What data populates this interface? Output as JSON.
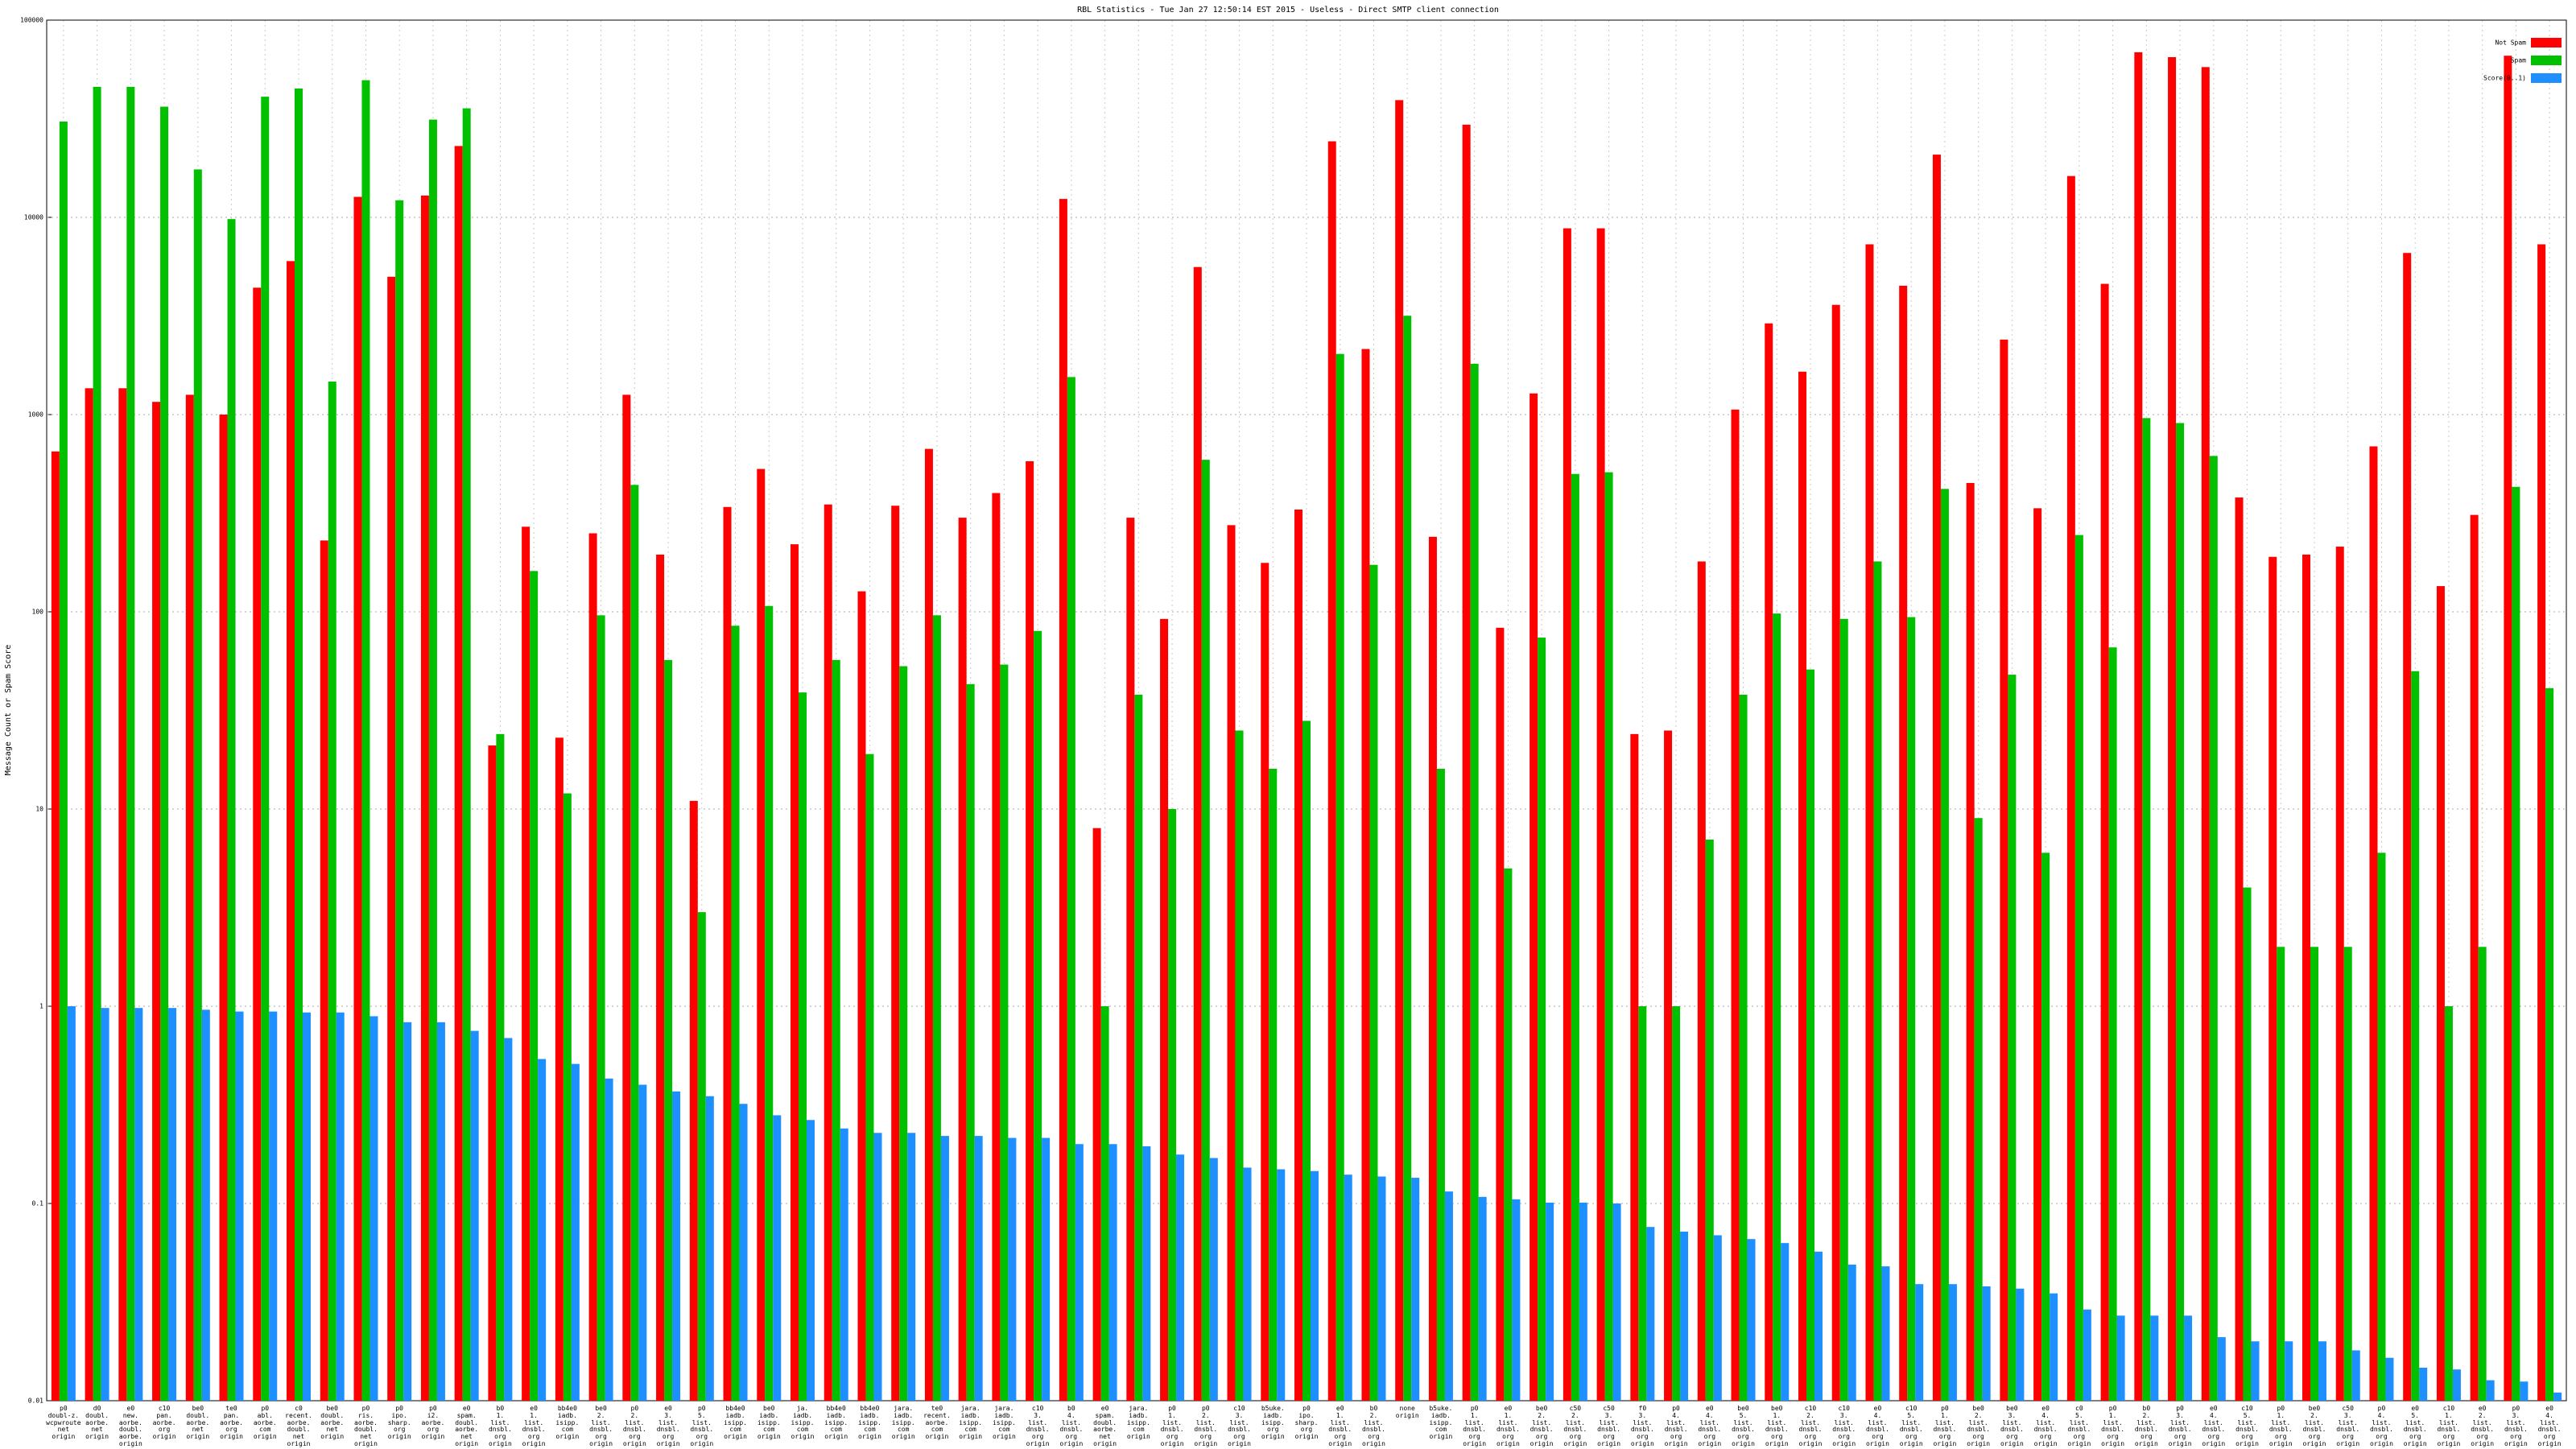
{
  "chart_data": {
    "type": "bar",
    "title": "RBL Statistics - Tue Jan 27 12:50:14 EST 2015 - Useless - Direct SMTP client connection",
    "y_label": "Message Count or Spam Score",
    "log_scale": true,
    "grid": true,
    "legend": "upper right",
    "ylim": [
      0.01,
      100000
    ],
    "yticks": [
      0.01,
      0.1,
      1,
      10,
      100,
      1000,
      10000,
      100000
    ],
    "categories": [
      "p0\ndoubl-z.\nwcpwroute\nnet\norigin",
      "d0\ndoubl.\naorbe.\nnet\norigin",
      "e0\nnew.\naorbe.\ndoubl.\naorbe.\norigin",
      "c10\npan.\naorbe.\norg\norigin",
      "be0\ndoubl.\naorbe.\nnet\norigin",
      "te0\npan.\naorbe.\norg\norigin",
      "p0\nabl.\naorbe.\ncom\norigin",
      "c0\nrecent.\naorbe.\ndoubl.\nnet\norigin",
      "be0\ndoubl.\naorbe.\nnet\norigin",
      "p0\nris.\naorbe.\ndoubl.\nnet\norigin",
      "p0\nipo.\nsharp.\norg\norigin",
      "p0\ni2.\naorbe.\norg\norigin",
      "e0\nspam.\ndoubl.\naorbe.\nnet\norigin",
      "b0\n1.\nlist.\ndnsbl.\norg\norigin",
      "e0\n1.\nlist.\ndnsbl.\norg\norigin",
      "bb4e0\niadb.\nisipp.\ncom\norigin",
      "be0\n2.\nlist.\ndnsbl.\norg\norigin",
      "p0\n2.\nlist.\ndnsbl.\norg\norigin",
      "e0\n3.\nlist.\ndnsbl.\norg\norigin",
      "p0\n5.\nlist.\ndnsbl.\norg\norigin",
      "bb4e0\niadb.\nisipp.\ncom\norigin",
      "be0\niadb.\nisipp.\ncom\norigin",
      "ja.\niadb.\nisipp.\ncom\norigin",
      "bb4e0\niadb.\nisipp.\ncom\norigin",
      "bb4e0\niadb.\nisipp.\ncom\norigin",
      "jara.\niadb.\nisipp.\ncom\norigin",
      "te0\nrecent.\naorbe.\ncom\norigin",
      "jara.\niadb.\nisipp.\ncom\norigin",
      "jara.\niadb.\nisipp.\ncom\norigin",
      "c10\n3.\nlist.\ndnsbl.\norg\norigin",
      "b0\n4.\nlist.\ndnsbl.\norg\norigin",
      "e0\nspam.\ndoubl.\naorbe.\nnet\norigin",
      "jara.\niadb.\nisipp.\ncom\norigin",
      "p0\n1.\nlist.\ndnsbl.\norg\norigin",
      "p0\n2.\nlist.\ndnsbl.\norg\norigin",
      "c10\n3.\nlist.\ndnsbl.\norg\norigin",
      "b5uke.\niadb.\nisipp.\norg\norigin",
      "p0\nipo.\nsharp.\norg\norigin",
      "e0\n1.\nlist.\ndnsbl.\norg\norigin",
      "b0\n2.\nlist.\ndnsbl.\norg\norigin",
      "none\norigin",
      "b5uke.\niadb.\nisipp.\ncom\norigin",
      "p0\n1.\nlist.\ndnsbl.\norg\norigin",
      "e0\n1.\nlist.\ndnsbl.\norg\norigin",
      "be0\n2.\nlist.\ndnsbl.\norg\norigin",
      "c50\n2.\nlist.\ndnsbl.\norg\norigin",
      "c50\n3.\nlist.\ndnsbl.\norg\norigin",
      "f0\n3.\nlist.\ndnsbl.\norg\norigin",
      "p0\n4.\nlist.\ndnsbl.\norg\norigin",
      "e0\n4.\nlist.\ndnsbl.\norg\norigin",
      "be0\n5.\nlist.\ndnsbl.\norg\norigin",
      "be0\n1.\nlist.\ndnsbl.\norg\norigin",
      "c10\n2.\nlist.\ndnsbl.\norg\norigin",
      "c10\n3.\nlist.\ndnsbl.\norg\norigin",
      "e0\n4.\nlist.\ndnsbl.\norg\norigin",
      "c10\n5.\nlist.\ndnsbl.\norg\norigin",
      "p0\n1.\nlist.\ndnsbl.\norg\norigin",
      "be0\n2.\nlist.\ndnsbl.\norg\norigin",
      "be0\n3.\nlist.\ndnsbl.\norg\norigin",
      "e0\n4.\nlist.\ndnsbl.\norg\norigin",
      "c0\n5.\nlist.\ndnsbl.\norg\norigin",
      "p0\n1.\nlist.\ndnsbl.\norg\norigin",
      "b0\n2.\nlist.\ndnsbl.\norg\norigin",
      "p0\n3.\nlist.\ndnsbl.\norg\norigin",
      "e0\n4.\nlist.\ndnsbl.\norg\norigin",
      "c10\n5.\nlist.\ndnsbl.\norg\norigin",
      "p0\n1.\nlist.\ndnsbl.\norg\norigin",
      "be0\n2.\nlist.\ndnsbl.\norg\norigin",
      "c50\n3.\nlist.\ndnsbl.\norg\norigin",
      "p0\n4.\nlist.\ndnsbl.\norg\norigin",
      "e0\n5.\nlist.\ndnsbl.\norg\norigin",
      "c10\n1.\nlist.\ndnsbl.\norg\norigin",
      "e0\n2.\nlist.\ndnsbl.\norg\norigin",
      "p0\n3.\nlist.\ndnsbl.\norg\norigin",
      "e0\n4.\nlist.\ndnsbl.\norg\norigin"
    ],
    "series": [
      {
        "name": "Not Spam",
        "color": "#ff0000",
        "values": [
          650,
          1360,
          1360,
          1160,
          1260,
          1000,
          4400,
          6000,
          230,
          12700,
          5000,
          12900,
          23000,
          21,
          270,
          23,
          250,
          1260,
          195,
          11,
          340,
          530,
          220,
          350,
          127,
          345,
          670,
          300,
          400,
          580,
          12400,
          8,
          300,
          92,
          5600,
          275,
          177,
          330,
          24300,
          2150,
          39300,
          240,
          29500,
          83,
          1280,
          8800,
          8800,
          24,
          25,
          180,
          1060,
          2900,
          1650,
          3600,
          7300,
          4500,
          20800,
          450,
          2400,
          335,
          16200,
          4600,
          68700,
          64900,
          57800,
          380,
          190,
          195,
          214,
          690,
          6600,
          135,
          310,
          66000,
          7300
        ]
      },
      {
        "name": "Spam",
        "color": "#00c000",
        "values": [
          30600,
          45900,
          45900,
          36400,
          17500,
          9800,
          40900,
          45000,
          1470,
          49600,
          12200,
          31300,
          35700,
          24,
          161,
          12,
          96,
          440,
          57,
          3,
          85,
          107,
          39,
          57,
          19,
          53,
          96,
          43,
          54,
          80,
          1550,
          1,
          38,
          10,
          590,
          25,
          16,
          28,
          2030,
          173,
          3170,
          16,
          1810,
          5,
          74,
          500,
          510,
          1,
          1,
          7,
          38,
          98,
          51,
          92,
          180,
          94,
          420,
          9,
          48,
          6,
          245,
          66,
          960,
          906,
          617,
          4,
          2,
          2,
          2,
          6,
          50,
          1,
          2,
          430,
          41
        ]
      },
      {
        "name": "Score(0..1)",
        "color": "#1e8fff",
        "values": [
          1.0,
          0.98,
          0.98,
          0.98,
          0.96,
          0.94,
          0.94,
          0.93,
          0.93,
          0.89,
          0.83,
          0.83,
          0.75,
          0.69,
          0.54,
          0.51,
          0.43,
          0.4,
          0.37,
          0.35,
          0.32,
          0.28,
          0.265,
          0.24,
          0.228,
          0.228,
          0.22,
          0.22,
          0.215,
          0.215,
          0.2,
          0.2,
          0.195,
          0.177,
          0.17,
          0.152,
          0.149,
          0.146,
          0.14,
          0.137,
          0.135,
          0.115,
          0.108,
          0.105,
          0.101,
          0.101,
          0.1,
          0.076,
          0.072,
          0.069,
          0.066,
          0.063,
          0.057,
          0.049,
          0.048,
          0.039,
          0.039,
          0.038,
          0.037,
          0.035,
          0.029,
          0.027,
          0.027,
          0.027,
          0.021,
          0.02,
          0.02,
          0.02,
          0.018,
          0.0165,
          0.0147,
          0.0144,
          0.0127,
          0.0125,
          0.011
        ]
      }
    ]
  }
}
